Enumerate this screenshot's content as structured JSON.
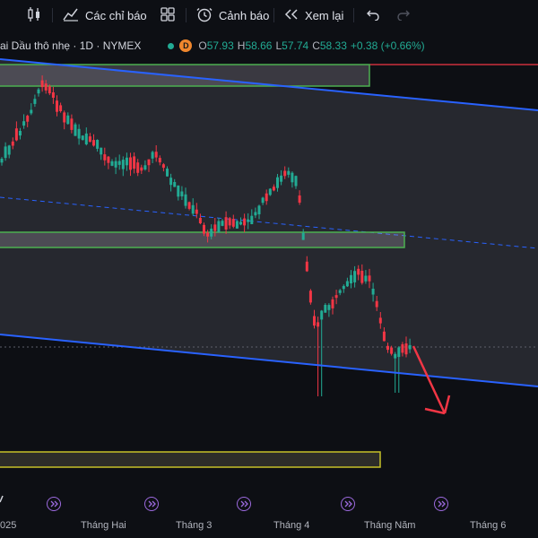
{
  "toolbar": {
    "indicators_label": "Các chỉ báo",
    "alerts_label": "Cảnh báo",
    "replay_label": "Xem lại"
  },
  "symbol": {
    "title": "ai Dầu thô nhẹ · 1D · NYMEX",
    "badge": "D",
    "open_key": "O",
    "open": "57.93",
    "high_key": "H",
    "high": "58.66",
    "low_key": "L",
    "low": "57.74",
    "close_key": "C",
    "close": "58.33",
    "change": "+0.38 (+0.66%)"
  },
  "x_axis": [
    "025",
    "Tháng Hai",
    "Tháng 3",
    "Tháng 4",
    "Tháng Năm",
    "Tháng 6"
  ],
  "colors": {
    "up": "#22ab94",
    "down": "#f23645",
    "channel": "#2962ff",
    "zone_border": "#4caf50",
    "demand_zone_border": "#c6c228",
    "arrow": "#f23645",
    "resistance": "#f23645"
  },
  "icons": [
    "candles-icon",
    "indicators-icon",
    "templates-icon",
    "alert-clock-icon",
    "replay-icon",
    "undo-icon",
    "redo-icon",
    "event-icon"
  ]
}
